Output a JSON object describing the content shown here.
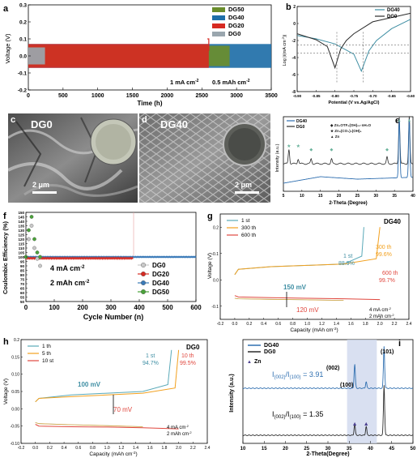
{
  "panels": {
    "a": {
      "label": "a",
      "ylabel": "Voltage (V)",
      "xlabel": "Time (h)",
      "xticks": [
        "0",
        "500",
        "1000",
        "1500",
        "2000",
        "2500",
        "3000",
        "3500"
      ],
      "yticks": [
        "-0.2",
        "-0.1",
        "0.0",
        "0.1",
        "0.2",
        "0.3"
      ],
      "legend": [
        "DG50",
        "DG40",
        "DG20",
        "DG0"
      ],
      "annotation1": "1 mA cm",
      "annotation1_sup": "-2",
      "annotation2": "0.5 mAh cm",
      "annotation2_sup": "-2",
      "colors": {
        "DG50": "#6a8d2c",
        "DG40": "#1f6fa8",
        "DG20": "#d62a22",
        "DG0": "#9aa6ae"
      }
    },
    "b": {
      "label": "b",
      "ylabel": "Log |i(mA cm",
      "ylabel_sup": "-2",
      "ylabel_end": ")|",
      "xlabel": "Potential (V vs.Ag/AgCl)",
      "xticks": [
        "-0.90",
        "-0.85",
        "-0.80",
        "-0.75",
        "-0.70",
        "-0.65",
        "-0.60"
      ],
      "yticks": [
        "2",
        "0",
        "-2",
        "-4",
        "-6",
        "-8"
      ],
      "legend": [
        "DG40",
        "DG0"
      ],
      "colors": {
        "DG40": "#3e8ea3",
        "DG0": "#2b2b2b"
      }
    },
    "c": {
      "label": "c",
      "title": "DG0",
      "scalebar": "2 μm"
    },
    "d": {
      "label": "d",
      "title": "DG40",
      "scalebar": "2 μm"
    },
    "e": {
      "label": "e",
      "legend": [
        "DG40",
        "DG0"
      ],
      "species": [
        "Zn",
        "OTF",
        "(OH)",
        "·nH",
        "O",
        "Zn",
        "(CO",
        ")",
        "(OH)",
        "Zn"
      ],
      "species_line1": "Zn₄OTF₆(OH)₂₂·nH₂O",
      "species_line2": "Zn₄(CO₃)₂(OH)₆",
      "species_line3": "Zn",
      "ylabel": "Intensity (a.u.)",
      "xlabel": "2-Theta (Degree)",
      "xticks": [
        "5",
        "10",
        "15",
        "20",
        "25",
        "30",
        "35",
        "40"
      ],
      "colors": {
        "DG40": "#2f6fb0",
        "DG0": "#2b2b2b",
        "marker": "#6ab39c"
      }
    },
    "f": {
      "label": "f",
      "ylabel": "Coulombic Efficiency (%)",
      "xlabel": "Cycle Number (n)",
      "xticks": [
        "0",
        "100",
        "200",
        "300",
        "400",
        "500",
        "600"
      ],
      "yticks": [
        "50",
        "55",
        "60",
        "65",
        "70",
        "75",
        "80",
        "85",
        "90",
        "95",
        "100",
        "105",
        "110",
        "115",
        "120",
        "125",
        "130",
        "135",
        "140",
        "145",
        "150"
      ],
      "legend": [
        "DG0",
        "DG20",
        "DG40",
        "DG50"
      ],
      "annotation1": "4 mA cm",
      "annotation1_sup": "-2",
      "annotation2": "2 mAh cm",
      "annotation2_sup": "-2",
      "colors": {
        "DG0": "#c9c9c9",
        "DG20": "#d62a22",
        "DG40": "#3a7ab8",
        "DG50": "#4aa23a"
      }
    },
    "g": {
      "label": "g",
      "title": "DG40",
      "legend": [
        "1 st",
        "300 th",
        "600 th"
      ],
      "ylabel": "Voltage (V)",
      "xlabel": "Capacity (mAh cm",
      "xlabel_sup": "-2",
      "xlabel_end": ")",
      "xticks": [
        "-0.2",
        "0.0",
        "0.2",
        "0.4",
        "0.6",
        "0.8",
        "1.0",
        "1.2",
        "1.4",
        "1.6",
        "1.8",
        "2.0",
        "2.2",
        "2.4"
      ],
      "yticks": [
        "0.2",
        "0.1",
        "0.0",
        "-0.1"
      ],
      "ann_1st": "1 st",
      "ann_1st_val": "88.9%",
      "ann_300": "300 th",
      "ann_300_val": "99.6%",
      "ann_600": "600 th",
      "ann_600_val": "99.7%",
      "ann_150": "150 mV",
      "ann_120": "120 mV",
      "cond1": "4 mA cm",
      "cond1_sup": "-2",
      "cond2": "2 mAh cm",
      "cond2_sup": "-2",
      "colors": {
        "1st": "#5aa9b8",
        "300th": "#f2a01e",
        "600th": "#e0473e"
      }
    },
    "h": {
      "label": "h",
      "title": "DG0",
      "legend": [
        "1 th",
        "5 th",
        "10 st"
      ],
      "ylabel": "Voltage (V)",
      "xlabel": "Capacity (mAh cm",
      "xlabel_sup": "-2",
      "xlabel_end": ")",
      "xticks": [
        "-0.2",
        "0.0",
        "0.2",
        "0.4",
        "0.6",
        "0.8",
        "1.0",
        "1.2",
        "1.4",
        "1.6",
        "1.8",
        "2.0",
        "2.2",
        "2.4"
      ],
      "yticks": [
        "0.2",
        "0.15",
        "0.10",
        "0.05",
        "0.00",
        "-0.05",
        "-0.10"
      ],
      "ann_1st": "1 st",
      "ann_1st_val": "94.7%",
      "ann_10": "10 th",
      "ann_10_val": "99.5%",
      "ann_100": "100 mV",
      "ann_70": "70 mV",
      "cond1": "4 mA cm",
      "cond1_sup": "-2",
      "cond2": "2 mAh cm",
      "cond2_sup": "-2",
      "colors": {
        "1th": "#5aa9b8",
        "5th": "#f2a01e",
        "10st": "#e0473e"
      }
    },
    "i": {
      "label": "i",
      "legend": [
        "DG40",
        "DG0"
      ],
      "zn_label": "Zn",
      "peak_002": "(002)",
      "peak_100": "(100)",
      "peak_101": "(101)",
      "ratio_top": "I",
      "ratio_top_sub1": "(002)",
      "ratio_top_mid": "/I",
      "ratio_top_sub2": "(100)",
      "ratio_top_val": " = 3.91",
      "ratio_bot_val": " = 1.35",
      "ylabel": "Intensity (a.u.)",
      "xlabel": "2-Theta(Degree)",
      "xticks": [
        "10",
        "15",
        "20",
        "25",
        "30",
        "35",
        "40",
        "45",
        "50"
      ],
      "colors": {
        "DG40": "#2f6fb0",
        "DG0": "#2b2b2b",
        "marker": "#4b3f8f",
        "band": "#cfd8ee"
      }
    }
  },
  "chart_data": [
    {
      "type": "line",
      "panel": "a",
      "title": "",
      "xlabel": "Time (h)",
      "ylabel": "Voltage (V)",
      "xlim": [
        0,
        3500
      ],
      "ylim": [
        -0.2,
        0.3
      ],
      "series": [
        {
          "name": "DG0",
          "x": [
            0,
            240
          ],
          "y_band": [
            -0.05,
            0.05
          ]
        },
        {
          "name": "DG20",
          "x": [
            0,
            2600
          ],
          "y_band": [
            -0.07,
            0.07
          ]
        },
        {
          "name": "DG50",
          "x": [
            0,
            2900
          ],
          "y_band": [
            -0.06,
            0.06
          ]
        },
        {
          "name": "DG40",
          "x": [
            0,
            3500
          ],
          "y_band": [
            -0.07,
            0.07
          ]
        }
      ]
    },
    {
      "type": "line",
      "panel": "b",
      "title": "",
      "xlabel": "Potential (V vs.Ag/AgCl)",
      "ylabel": "Log |i(mA cm-2)|",
      "xlim": [
        -0.9,
        -0.6
      ],
      "ylim": [
        -8,
        2
      ],
      "series": [
        {
          "name": "DG40",
          "x": [
            -0.9,
            -0.85,
            -0.8,
            -0.75,
            -0.73,
            -0.71,
            -0.69,
            -0.65,
            -0.6
          ],
          "y": [
            -1.4,
            -1.8,
            -2.4,
            -3.6,
            -5.6,
            -3.2,
            -2.0,
            -0.6,
            0.5
          ]
        },
        {
          "name": "DG0",
          "x": [
            -0.9,
            -0.85,
            -0.82,
            -0.8,
            -0.785,
            -0.77,
            -0.75,
            -0.7,
            -0.6
          ],
          "y": [
            -1.2,
            -1.9,
            -2.7,
            -5.2,
            -3.0,
            -2.0,
            -1.2,
            0.2,
            1.2
          ]
        }
      ]
    },
    {
      "type": "line",
      "panel": "e",
      "title": "",
      "xlabel": "2-Theta (Degree)",
      "ylabel": "Intensity (a.u.)",
      "xlim": [
        5,
        40
      ],
      "series": [
        {
          "name": "DG0",
          "peaks": [
            6.5,
            9,
            12.5,
            18,
            33,
            36.3,
            39
          ]
        },
        {
          "name": "DG40",
          "peaks": [
            36.3,
            39
          ]
        }
      ]
    },
    {
      "type": "scatter",
      "panel": "f",
      "title": "",
      "xlabel": "Cycle Number (n)",
      "ylabel": "Coulombic Efficiency (%)",
      "xlim": [
        0,
        600
      ],
      "ylim": [
        50,
        150
      ],
      "series": [
        {
          "name": "DG0",
          "x": [
            0,
            10,
            20,
            30,
            40,
            50
          ],
          "y": [
            100,
            120,
            135,
            110,
            98,
            90
          ]
        },
        {
          "name": "DG20",
          "x": [
            0,
            100,
            200,
            300,
            380
          ],
          "y": [
            97,
            98.5,
            99,
            99,
            99
          ]
        },
        {
          "name": "DG40",
          "x": [
            0,
            100,
            200,
            300,
            400,
            500,
            600
          ],
          "y": [
            99,
            100,
            100,
            100,
            100,
            100,
            100
          ]
        },
        {
          "name": "DG50",
          "x": [
            0,
            10,
            20,
            30,
            40,
            50
          ],
          "y": [
            100,
            130,
            145,
            120,
            105,
            100
          ]
        }
      ]
    },
    {
      "type": "line",
      "panel": "g",
      "title": "DG40",
      "xlabel": "Capacity (mAh cm-2)",
      "ylabel": "Voltage (V)",
      "xlim": [
        -0.2,
        2.4
      ],
      "ylim": [
        -0.15,
        0.25
      ],
      "series": [
        {
          "name": "1 st",
          "x": [
            0,
            0.05,
            0.5,
            1,
            1.5,
            1.75,
            1.78
          ],
          "y": [
            0.02,
            0.04,
            0.05,
            0.055,
            0.06,
            0.09,
            0.2
          ]
        },
        {
          "name": "300 th",
          "x": [
            0,
            0.05,
            0.5,
            1,
            1.5,
            1.95,
            2.0
          ],
          "y": [
            0.02,
            0.04,
            0.05,
            0.055,
            0.06,
            0.08,
            0.2
          ]
        },
        {
          "name": "600 th",
          "x": [
            0,
            0.05,
            0.5,
            1,
            1.5,
            2.0
          ],
          "y": [
            -0.06,
            -0.065,
            -0.068,
            -0.07,
            -0.072,
            -0.075
          ]
        }
      ]
    },
    {
      "type": "line",
      "panel": "h",
      "title": "DG0",
      "xlabel": "Capacity (mAh cm-2)",
      "ylabel": "Voltage (V)",
      "xlim": [
        -0.2,
        2.4
      ],
      "ylim": [
        -0.1,
        0.2
      ],
      "series": [
        {
          "name": "1 th",
          "x": [
            0,
            0.05,
            0.5,
            1,
            1.5,
            1.85,
            1.9
          ],
          "y": [
            0.02,
            0.03,
            0.04,
            0.045,
            0.05,
            0.07,
            0.17
          ]
        },
        {
          "name": "5 th",
          "x": [
            0,
            0.05,
            0.5,
            1,
            1.5,
            1.95,
            2.0
          ],
          "y": [
            0.02,
            0.03,
            0.035,
            0.04,
            0.045,
            0.06,
            0.17
          ]
        },
        {
          "name": "10 st",
          "x": [
            0,
            0.05,
            0.5,
            1,
            1.5,
            2.0
          ],
          "y": [
            -0.045,
            -0.05,
            -0.052,
            -0.053,
            -0.055,
            -0.058
          ]
        }
      ]
    },
    {
      "type": "line",
      "panel": "i",
      "title": "",
      "xlabel": "2-Theta(Degree)",
      "ylabel": "Intensity (a.u.)",
      "xlim": [
        10,
        50
      ],
      "series": [
        {
          "name": "DG40",
          "peaks": [
            36.3,
            39,
            43.2
          ]
        },
        {
          "name": "DG0",
          "peaks": [
            36.3,
            39,
            43.2
          ]
        }
      ]
    }
  ]
}
